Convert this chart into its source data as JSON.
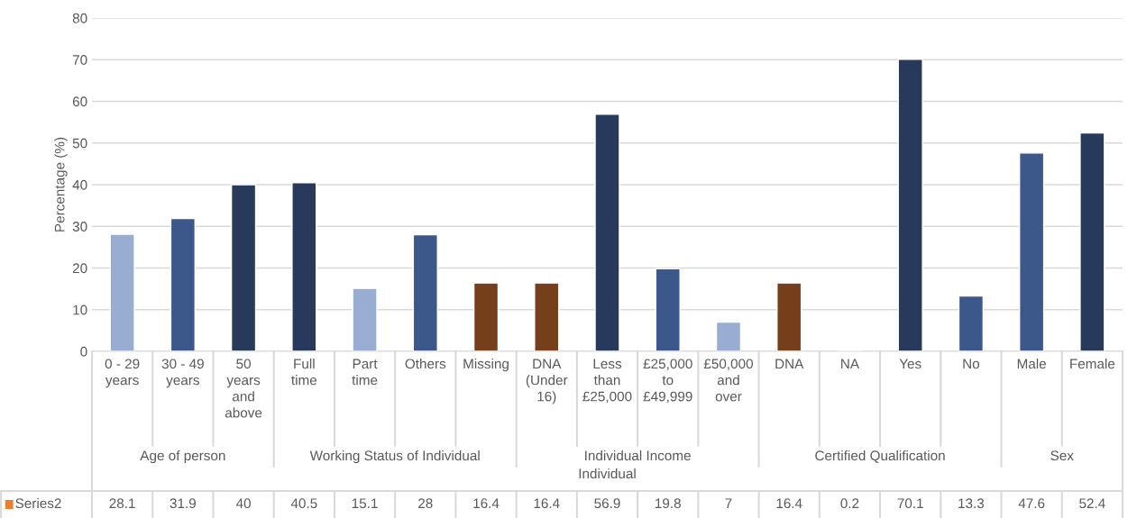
{
  "chart_data": {
    "type": "bar",
    "ylabel": "Percentage (%)",
    "categories": [
      "0 - 29\nyears",
      "30 - 49\nyears",
      "50\nyears\nand\nabove",
      "Full\ntime",
      "Part\ntime",
      "Others",
      "Missing",
      "DNA\n(Under\n16)",
      "Less\nthan\n£25,000",
      "£25,000\nto\n£49,999",
      "£50,000\nand\nover",
      "DNA",
      "NA",
      "Yes",
      "No",
      "Male",
      "Female"
    ],
    "series": [
      {
        "name": "Series2",
        "color": "#ed7d31",
        "colors": [
          "#8faadc",
          "#2f5597",
          "#1f3864",
          "#1f3864",
          "#8faadc",
          "#2f5597",
          "#843c0c",
          "#843c0c",
          "#1f3864",
          "#2f5597",
          "#8faadc",
          "#843c0c",
          "#843c0c",
          "#1f3864",
          "#2f5597",
          "#2f5597",
          "#1f3864"
        ],
        "values": [
          28.1,
          31.9,
          40,
          40.5,
          15.1,
          28,
          16.4,
          16.4,
          56.9,
          19.8,
          7,
          16.4,
          0.2,
          70.1,
          13.3,
          47.6,
          52.4
        ]
      }
    ],
    "annotations": [
      "Age of person",
      "Working Status of Individual",
      "Individual Income",
      "Certified Qualification",
      "Sex",
      "Individual"
    ],
    "ylim": [
      0,
      80
    ],
    "yticks": [
      0,
      10,
      20,
      30,
      40,
      50,
      60,
      70,
      80
    ],
    "grid": "y",
    "data_labels": true,
    "legend": "bottom"
  }
}
